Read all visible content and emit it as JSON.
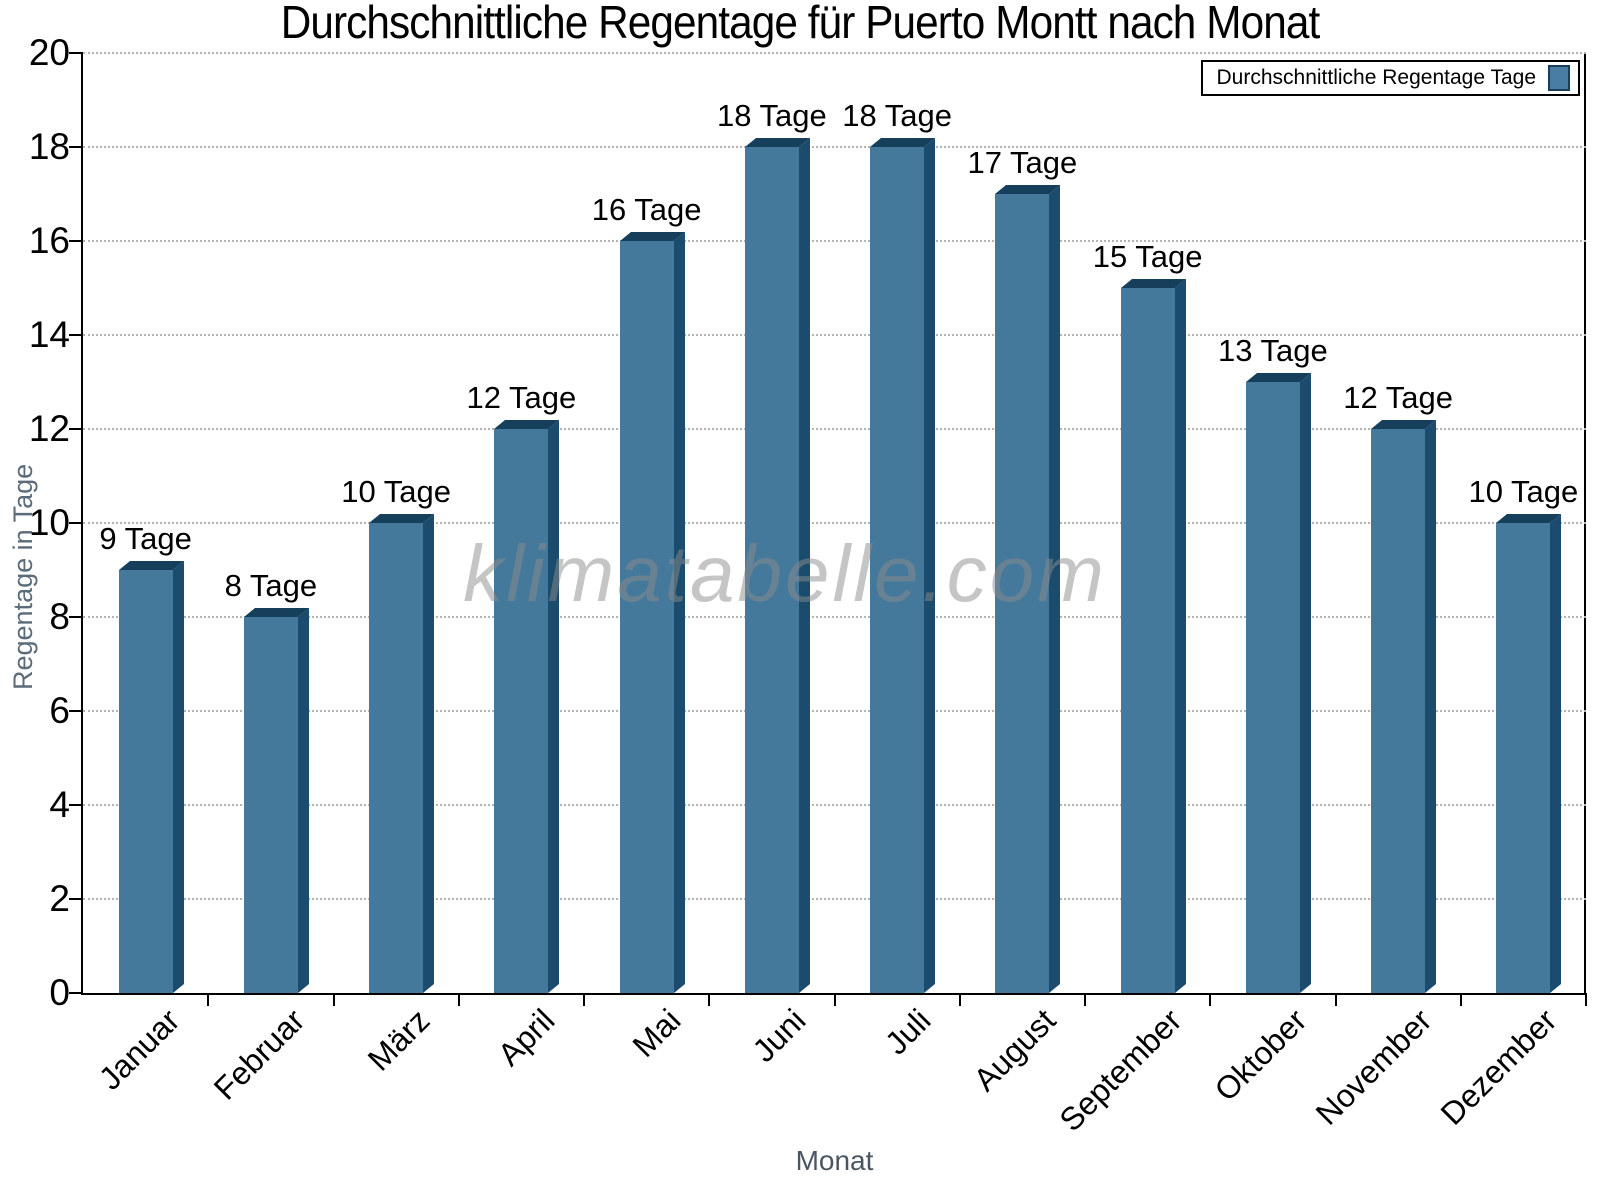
{
  "title": "Durchschnittliche Regentage für Puerto Montt nach Monat",
  "legend": {
    "label": "Durchschnittliche Regentage Tage"
  },
  "watermark": "klimatabelle.com",
  "chart_data": {
    "type": "bar",
    "title": "Durchschnittliche Regentage für Puerto Montt nach Monat",
    "categories": [
      "Januar",
      "Februar",
      "März",
      "April",
      "Mai",
      "Juni",
      "Juli",
      "August",
      "September",
      "Oktober",
      "November",
      "Dezember"
    ],
    "series": [
      {
        "name": "Durchschnittliche Regentage Tage",
        "values": [
          9,
          8,
          10,
          12,
          16,
          18,
          18,
          17,
          15,
          13,
          12,
          10
        ]
      }
    ],
    "bar_label_suffix": " Tage",
    "xlabel": "Monat",
    "ylabel": "Regentage in Tage",
    "ylim": [
      0,
      20
    ],
    "ytick_step": 2,
    "grid": "horizontal-dotted",
    "legend_position": "top-right",
    "bar_style": "3d",
    "colors": {
      "bar_front": "#44799b",
      "bar_top": "#163f5c",
      "bar_side": "#1b4c6d",
      "legend_swatch": "#4a7da4",
      "legend_swatch_border": "#173f5b",
      "grid": "#b3b3b3",
      "axis": "#000000",
      "y_axis_title": "#5a6b7a",
      "x_axis_title": "#4a5763",
      "watermark": "#8c8c8c"
    }
  }
}
